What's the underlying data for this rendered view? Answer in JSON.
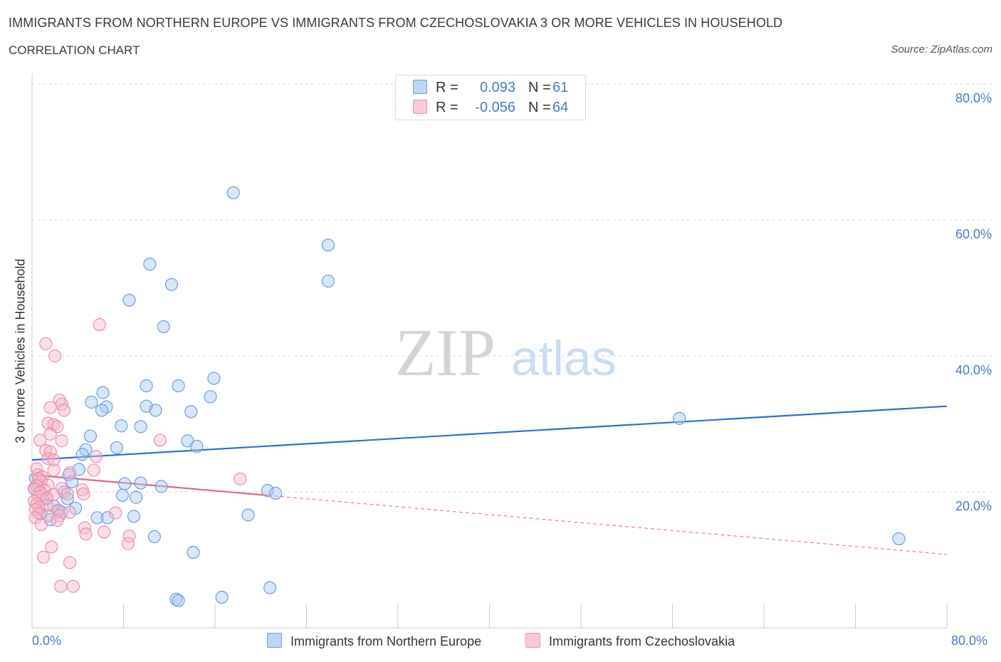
{
  "header": {
    "title": "IMMIGRANTS FROM NORTHERN EUROPE VS IMMIGRANTS FROM CZECHOSLOVAKIA 3 OR MORE VEHICLES IN HOUSEHOLD",
    "subtitle": "CORRELATION CHART",
    "source": "Source: ZipAtlas.com"
  },
  "watermark": {
    "zip": "ZIP",
    "atlas": "atlas"
  },
  "legend": {
    "series1": {
      "r_label": "R =",
      "r_value": "0.093",
      "n_label": "N =",
      "n_value": "61"
    },
    "series2": {
      "r_label": "R =",
      "r_value": "-0.056",
      "n_label": "N =",
      "n_value": "64"
    }
  },
  "colors": {
    "blue_fill": "#a8c8f0",
    "blue_stroke": "#6a9ee0",
    "blue_line": "#2f6fcf",
    "pink_fill": "#f5b8cc",
    "pink_stroke": "#ee8eaa",
    "pink_line": "#e0668f",
    "axis_text": "#4a7ac9",
    "grid": "#d8d8d8"
  },
  "chart_data": {
    "type": "scatter",
    "title": "IMMIGRANTS FROM NORTHERN EUROPE VS IMMIGRANTS FROM CZECHOSLOVAKIA 3 OR MORE VEHICLES IN HOUSEHOLD",
    "xlabel": "",
    "ylabel": "3 or more Vehicles in Household",
    "xlim": [
      0,
      80
    ],
    "ylim": [
      0,
      80
    ],
    "x_tick_labels": [
      "0.0%",
      "80.0%"
    ],
    "y_tick_labels": [
      "20.0%",
      "40.0%",
      "60.0%",
      "80.0%"
    ],
    "y_ticks": [
      20,
      40,
      60,
      80
    ],
    "grid": true,
    "series": [
      {
        "name": "Immigrants from Northern Europe",
        "color": "blue",
        "trend": {
          "x": [
            0,
            80
          ],
          "y": [
            24.7,
            32.6
          ],
          "dashed_from": null
        },
        "points": [
          [
            17.6,
            64.0
          ],
          [
            25.9,
            56.3
          ],
          [
            10.3,
            53.5
          ],
          [
            12.2,
            50.5
          ],
          [
            25.9,
            51.0
          ],
          [
            8.5,
            48.2
          ],
          [
            11.5,
            44.3
          ],
          [
            15.9,
            36.7
          ],
          [
            10.0,
            35.6
          ],
          [
            12.8,
            35.6
          ],
          [
            6.2,
            34.6
          ],
          [
            15.6,
            34.0
          ],
          [
            5.2,
            33.2
          ],
          [
            6.5,
            32.5
          ],
          [
            10.0,
            32.6
          ],
          [
            6.1,
            32.0
          ],
          [
            10.8,
            32.0
          ],
          [
            13.9,
            31.8
          ],
          [
            56.6,
            30.8
          ],
          [
            7.8,
            29.7
          ],
          [
            9.5,
            29.6
          ],
          [
            5.1,
            28.2
          ],
          [
            13.6,
            27.5
          ],
          [
            14.4,
            26.7
          ],
          [
            7.4,
            26.5
          ],
          [
            4.7,
            26.2
          ],
          [
            4.4,
            25.5
          ],
          [
            4.1,
            23.3
          ],
          [
            3.2,
            22.5
          ],
          [
            0.3,
            22.0
          ],
          [
            3.5,
            21.5
          ],
          [
            8.1,
            21.2
          ],
          [
            9.5,
            21.3
          ],
          [
            11.3,
            20.8
          ],
          [
            0.6,
            21.0
          ],
          [
            0.2,
            20.5
          ],
          [
            2.8,
            20.0
          ],
          [
            20.6,
            20.2
          ],
          [
            21.3,
            19.8
          ],
          [
            7.9,
            19.5
          ],
          [
            9.1,
            19.2
          ],
          [
            1.3,
            19.0
          ],
          [
            3.1,
            19.0
          ],
          [
            0.9,
            18.9
          ],
          [
            1.9,
            17.9
          ],
          [
            3.8,
            17.6
          ],
          [
            2.3,
            17.2
          ],
          [
            0.8,
            16.8
          ],
          [
            2.6,
            17.0
          ],
          [
            8.9,
            16.4
          ],
          [
            5.7,
            16.2
          ],
          [
            6.6,
            16.2
          ],
          [
            1.6,
            15.9
          ],
          [
            18.9,
            16.6
          ],
          [
            75.8,
            13.1
          ],
          [
            10.7,
            13.4
          ],
          [
            14.1,
            11.1
          ],
          [
            20.8,
            5.9
          ],
          [
            16.6,
            4.5
          ],
          [
            12.6,
            4.2
          ],
          [
            12.8,
            4.0
          ]
        ]
      },
      {
        "name": "Immigrants from Czechoslovakia",
        "color": "pink",
        "trend": {
          "x": [
            0,
            80
          ],
          "y": [
            22.5,
            10.8
          ],
          "dashed_from": 20.6
        },
        "points": [
          [
            5.9,
            44.6
          ],
          [
            1.2,
            41.8
          ],
          [
            2.0,
            40.0
          ],
          [
            2.4,
            33.5
          ],
          [
            2.6,
            32.9
          ],
          [
            1.6,
            32.4
          ],
          [
            2.8,
            32.0
          ],
          [
            1.4,
            30.1
          ],
          [
            1.9,
            29.9
          ],
          [
            2.2,
            29.6
          ],
          [
            1.6,
            28.5
          ],
          [
            2.6,
            27.5
          ],
          [
            11.2,
            27.6
          ],
          [
            0.7,
            27.6
          ],
          [
            1.2,
            26.1
          ],
          [
            1.6,
            25.9
          ],
          [
            5.6,
            25.2
          ],
          [
            1.4,
            24.9
          ],
          [
            1.9,
            24.7
          ],
          [
            0.4,
            23.4
          ],
          [
            1.9,
            23.2
          ],
          [
            3.3,
            22.8
          ],
          [
            5.4,
            23.2
          ],
          [
            0.5,
            22.5
          ],
          [
            0.9,
            22.2
          ],
          [
            0.6,
            21.9
          ],
          [
            18.2,
            21.9
          ],
          [
            0.8,
            21.5
          ],
          [
            1.4,
            21.0
          ],
          [
            0.4,
            20.9
          ],
          [
            0.2,
            20.4
          ],
          [
            1.1,
            20.2
          ],
          [
            2.6,
            20.5
          ],
          [
            4.4,
            20.3
          ],
          [
            0.7,
            19.9
          ],
          [
            3.1,
            19.7
          ],
          [
            4.5,
            19.7
          ],
          [
            1.9,
            19.6
          ],
          [
            0.6,
            19.3
          ],
          [
            1.3,
            19.1
          ],
          [
            0.2,
            18.6
          ],
          [
            0.4,
            18.2
          ],
          [
            1.3,
            18.0
          ],
          [
            0.6,
            17.8
          ],
          [
            0.3,
            17.4
          ],
          [
            2.3,
            17.3
          ],
          [
            3.3,
            17.0
          ],
          [
            0.6,
            16.8
          ],
          [
            1.4,
            16.5
          ],
          [
            2.4,
            16.5
          ],
          [
            7.3,
            16.9
          ],
          [
            0.3,
            16.2
          ],
          [
            2.2,
            15.8
          ],
          [
            0.8,
            15.2
          ],
          [
            4.6,
            14.7
          ],
          [
            6.3,
            14.1
          ],
          [
            4.7,
            13.8
          ],
          [
            8.5,
            13.5
          ],
          [
            1.7,
            11.9
          ],
          [
            8.4,
            12.4
          ],
          [
            1.0,
            10.4
          ],
          [
            3.3,
            9.6
          ],
          [
            3.6,
            6.1
          ],
          [
            2.5,
            6.1
          ]
        ]
      }
    ]
  },
  "bottom_legend": {
    "series1_label": "Immigrants from Northern Europe",
    "series2_label": "Immigrants from Czechoslovakia"
  }
}
